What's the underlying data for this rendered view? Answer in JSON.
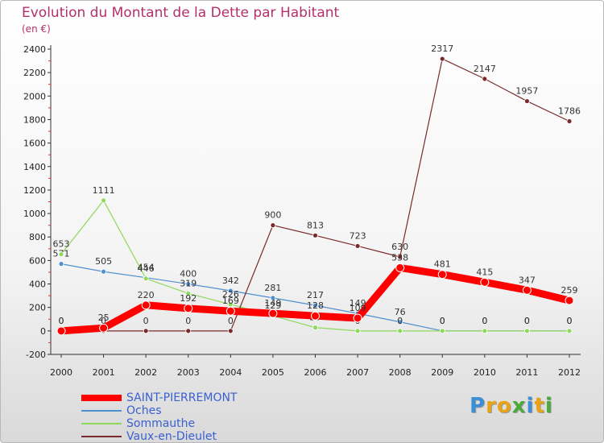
{
  "title": "Evolution du Montant de la Dette par Habitant",
  "unit": "(en €)",
  "logo": {
    "letters": [
      "P",
      "r",
      "o",
      "x",
      "i",
      "t",
      "i"
    ],
    "colors": [
      "#3a8fd6",
      "#e8a317",
      "#e8a317",
      "#4aaa3a",
      "#3a8fd6",
      "#e8a317",
      "#4aaa3a"
    ]
  },
  "chart_data": {
    "type": "line",
    "x": [
      2000,
      2001,
      2002,
      2003,
      2004,
      2005,
      2006,
      2007,
      2008,
      2009,
      2010,
      2011,
      2012
    ],
    "ylim": [
      -200,
      2400
    ],
    "yticks": [
      -200,
      0,
      200,
      400,
      600,
      800,
      1000,
      1200,
      1400,
      1600,
      1800,
      2000,
      2200,
      2400
    ],
    "grid": false,
    "legend_position": "bottom-left",
    "series": [
      {
        "name": "SAINT-PIERREMONT",
        "color": "#ff0000",
        "values": [
          0,
          25,
          220,
          192,
          169,
          149,
          128,
          109,
          538,
          481,
          415,
          347,
          259
        ]
      },
      {
        "name": "Oches",
        "color": "#4f8fcf",
        "values": [
          571,
          505,
          454,
          400,
          342,
          281,
          217,
          149,
          76,
          0,
          0,
          0,
          0
        ]
      },
      {
        "name": "Sommauthe",
        "color": "#8ed85a",
        "values": [
          653,
          1111,
          446,
          319,
          226,
          129,
          29,
          0,
          0,
          0,
          0,
          0,
          0
        ]
      },
      {
        "name": "Vaux-en-Dieulet",
        "color": "#7a2a2a",
        "values": [
          0,
          0,
          0,
          0,
          0,
          900,
          813,
          723,
          630,
          2317,
          2147,
          1957,
          1786
        ]
      }
    ]
  }
}
